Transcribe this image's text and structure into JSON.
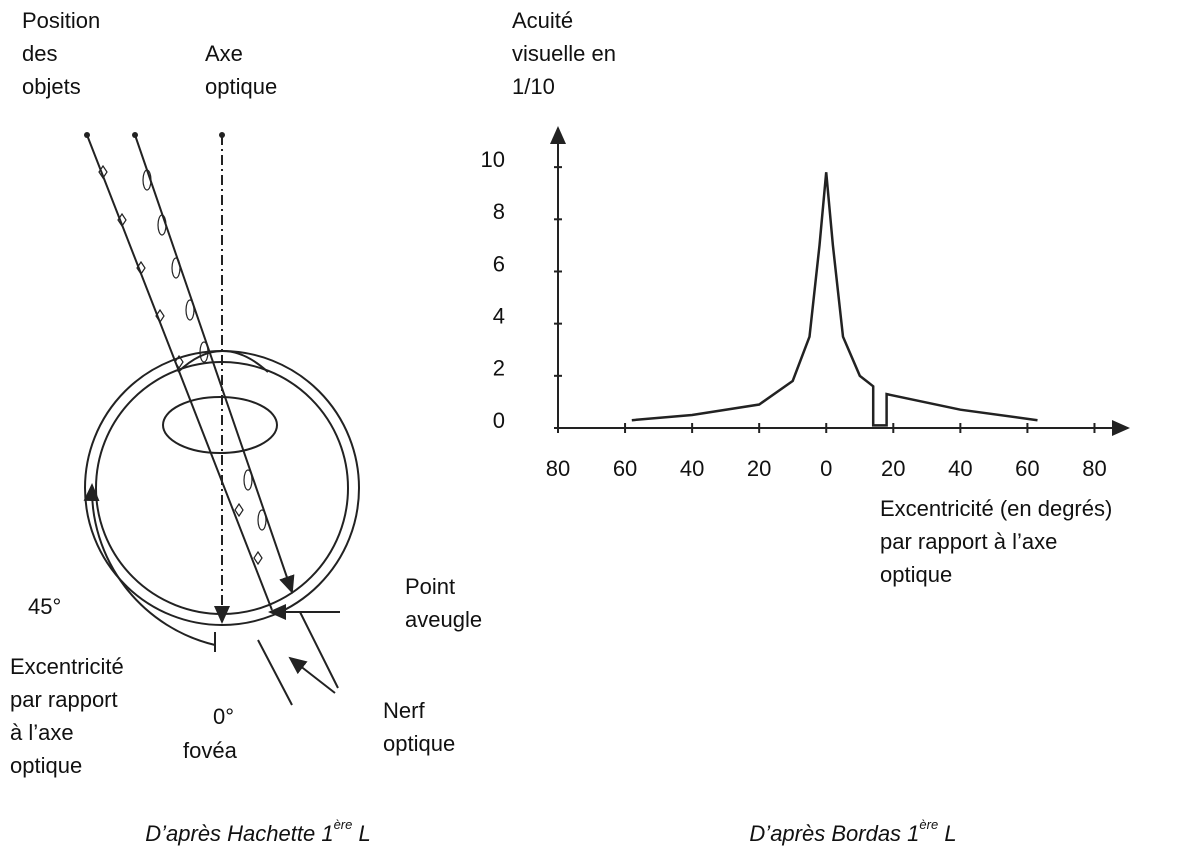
{
  "diagram": {
    "labels": {
      "objects_position": [
        "Position",
        "des",
        "objets"
      ],
      "optical_axis": [
        "Axe",
        "optique"
      ],
      "angle_45": "45°",
      "eccentricity": [
        "Excentricité",
        "par rapport",
        "à l’axe",
        "optique"
      ],
      "angle_0": "0°",
      "fovea": "fovéa",
      "blind_spot": [
        "Point",
        "aveugle"
      ],
      "optic_nerve": [
        "Nerf",
        "optique"
      ]
    },
    "caption": {
      "text": "D’après Hachette 1",
      "sup": "ère",
      "end": " L"
    }
  },
  "chart_data": {
    "type": "line",
    "y_label": [
      "Acuité",
      "visuelle en",
      "1/10"
    ],
    "x_label": [
      "Excentricité (en degrés)",
      "par rapport à l’axe",
      "optique"
    ],
    "x": [
      -58,
      -40,
      -20,
      -10,
      -5,
      -2,
      0,
      2,
      5,
      10,
      14,
      14,
      18,
      18,
      40,
      63
    ],
    "values": [
      0.3,
      0.5,
      0.9,
      1.8,
      3.5,
      7,
      9.8,
      7,
      3.5,
      2,
      1.6,
      0.1,
      0.1,
      1.3,
      0.7,
      0.3
    ],
    "color": "#222222",
    "xlim": [
      -80,
      90
    ],
    "ylim": [
      0,
      11.5
    ],
    "xticks": [
      {
        "value": -80,
        "label": "80"
      },
      {
        "value": -60,
        "label": "60"
      },
      {
        "value": -40,
        "label": "40"
      },
      {
        "value": -20,
        "label": "20"
      },
      0,
      20,
      40,
      60,
      80
    ],
    "yticks": [
      0,
      2,
      4,
      6,
      8,
      10
    ],
    "caption": {
      "text": "D’après Bordas 1",
      "sup": "ère",
      "end": " L"
    }
  }
}
